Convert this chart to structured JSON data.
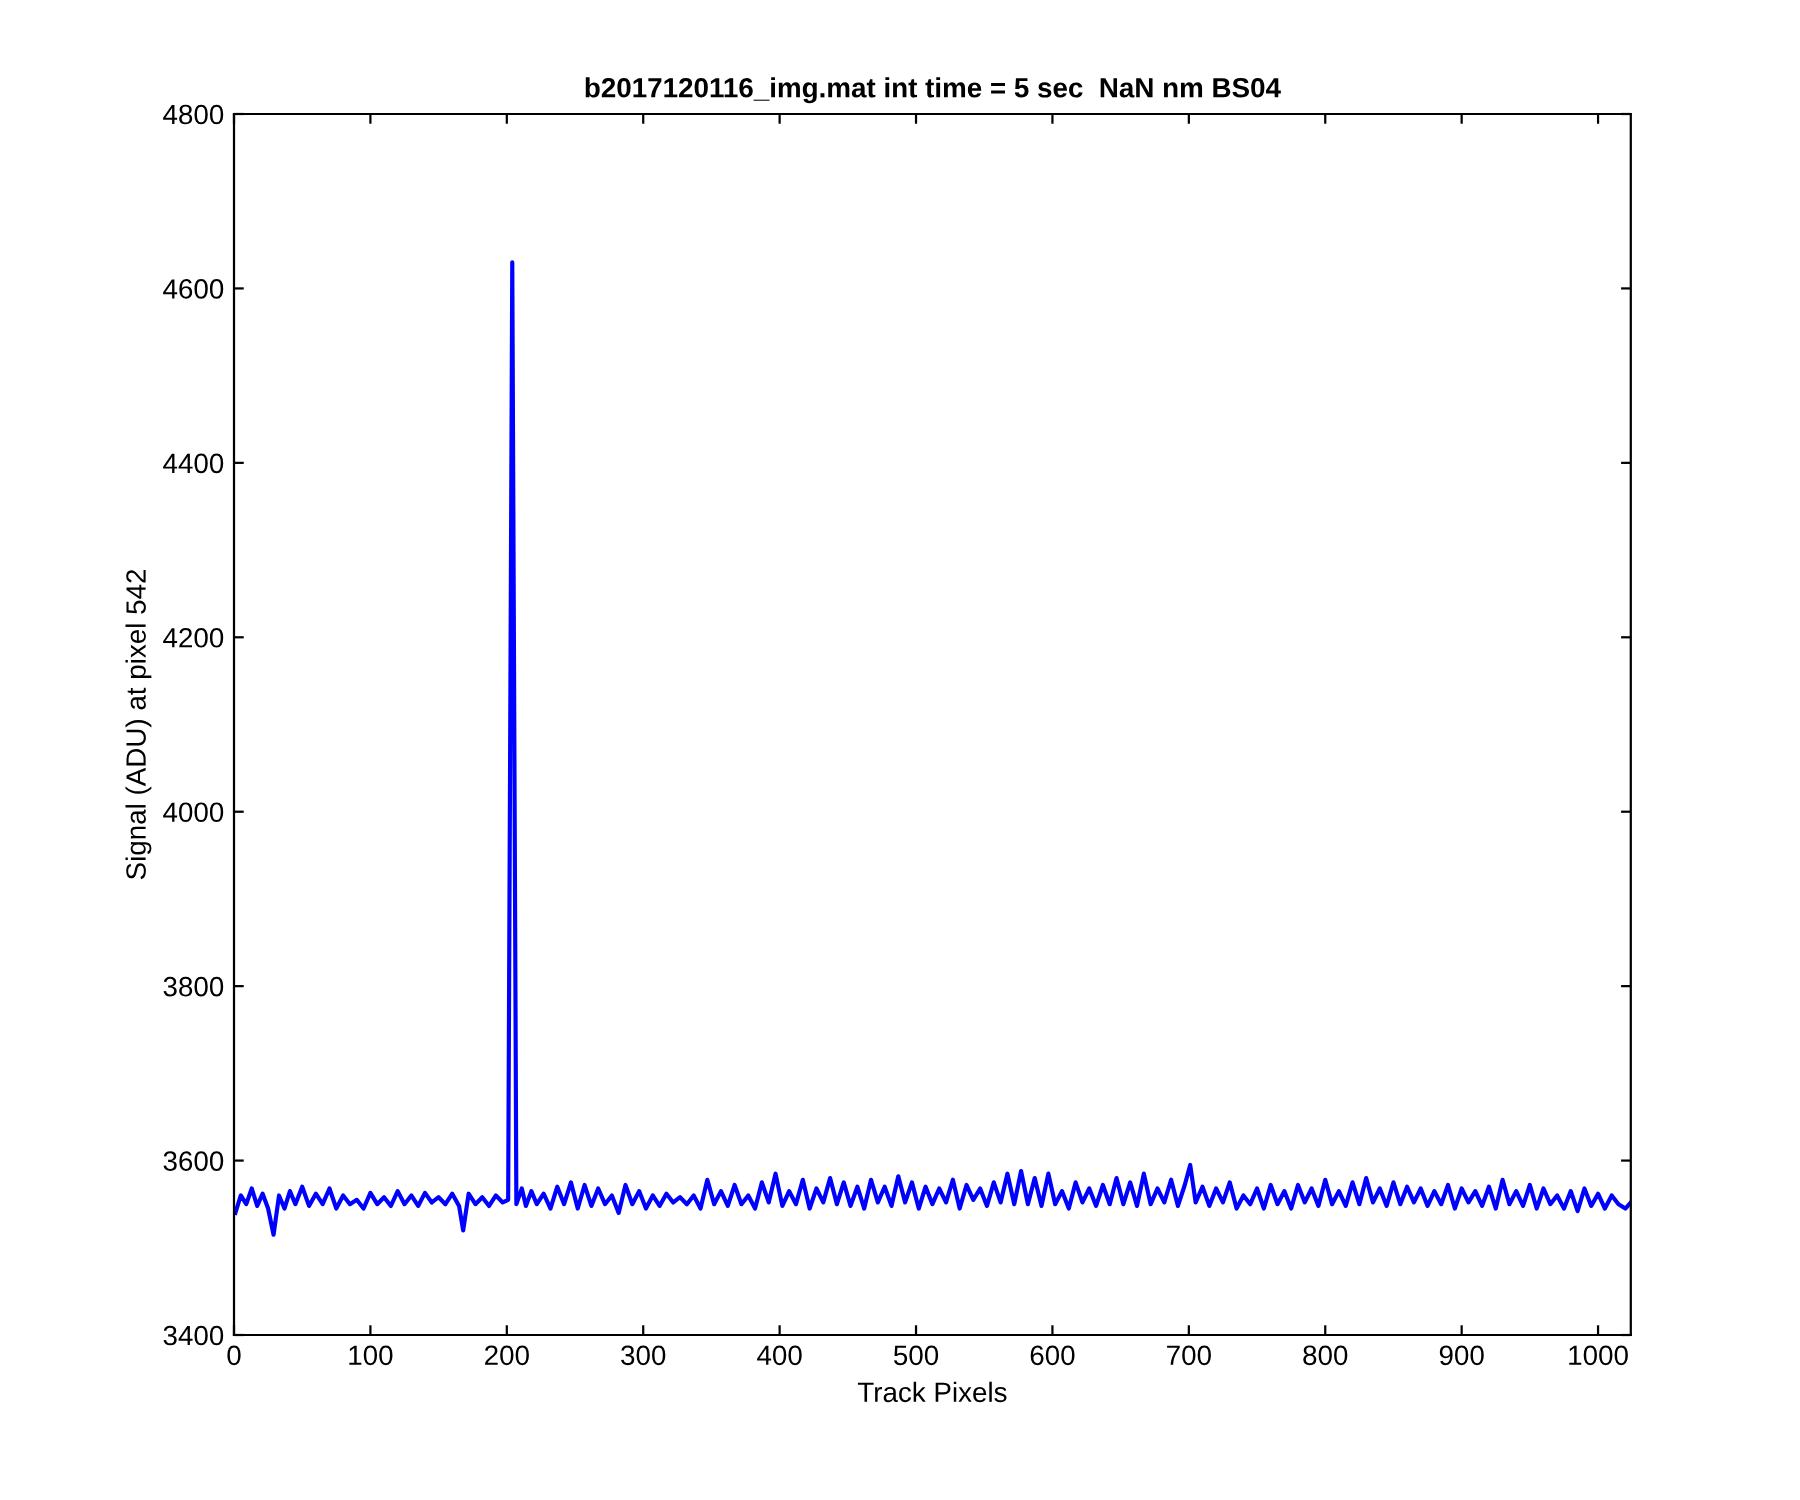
{
  "chart_data": {
    "type": "line",
    "title": "b2017120116_img.mat int time = 5 sec  NaN nm BS04",
    "xlabel": "Track Pixels",
    "ylabel": "Signal (ADU) at pixel 542",
    "series": [
      {
        "color": "#0000ff",
        "x": [
          1,
          5,
          9,
          13,
          17,
          21,
          25,
          29,
          33,
          37,
          41,
          45,
          50,
          55,
          60,
          65,
          70,
          75,
          80,
          85,
          90,
          95,
          100,
          105,
          110,
          115,
          120,
          125,
          130,
          135,
          140,
          145,
          150,
          155,
          160,
          165,
          168,
          172,
          177,
          182,
          187,
          192,
          197,
          201,
          204,
          207,
          211,
          214,
          218,
          222,
          227,
          232,
          237,
          242,
          247,
          252,
          257,
          262,
          267,
          272,
          277,
          282,
          287,
          292,
          297,
          302,
          307,
          312,
          317,
          322,
          327,
          332,
          337,
          342,
          347,
          352,
          357,
          362,
          367,
          372,
          377,
          382,
          387,
          392,
          397,
          402,
          407,
          412,
          417,
          422,
          427,
          432,
          437,
          442,
          447,
          452,
          457,
          462,
          467,
          472,
          477,
          482,
          487,
          492,
          497,
          502,
          507,
          512,
          517,
          522,
          527,
          532,
          537,
          542,
          547,
          552,
          557,
          562,
          567,
          572,
          577,
          582,
          587,
          592,
          597,
          602,
          607,
          612,
          617,
          622,
          627,
          632,
          637,
          642,
          647,
          652,
          657,
          662,
          667,
          672,
          677,
          682,
          687,
          692,
          697,
          701,
          705,
          710,
          715,
          720,
          725,
          730,
          735,
          740,
          745,
          750,
          755,
          760,
          765,
          770,
          775,
          780,
          785,
          790,
          795,
          800,
          805,
          810,
          815,
          820,
          825,
          830,
          835,
          840,
          845,
          850,
          855,
          860,
          865,
          870,
          875,
          880,
          885,
          890,
          895,
          900,
          905,
          910,
          915,
          920,
          925,
          930,
          935,
          940,
          945,
          950,
          955,
          960,
          965,
          970,
          975,
          980,
          985,
          990,
          995,
          1000,
          1005,
          1010,
          1015,
          1020,
          1024
        ],
        "values": [
          3540,
          3560,
          3550,
          3568,
          3548,
          3562,
          3545,
          3515,
          3560,
          3545,
          3565,
          3550,
          3570,
          3548,
          3562,
          3550,
          3568,
          3545,
          3560,
          3550,
          3555,
          3545,
          3563,
          3550,
          3558,
          3548,
          3565,
          3550,
          3560,
          3548,
          3563,
          3552,
          3558,
          3550,
          3562,
          3548,
          3520,
          3562,
          3550,
          3558,
          3548,
          3560,
          3552,
          3555,
          4630,
          3550,
          3568,
          3548,
          3565,
          3550,
          3562,
          3545,
          3570,
          3550,
          3575,
          3545,
          3572,
          3548,
          3568,
          3550,
          3560,
          3540,
          3572,
          3550,
          3565,
          3545,
          3560,
          3548,
          3562,
          3552,
          3558,
          3550,
          3560,
          3545,
          3578,
          3550,
          3565,
          3548,
          3572,
          3550,
          3560,
          3545,
          3575,
          3552,
          3585,
          3548,
          3565,
          3550,
          3578,
          3545,
          3568,
          3552,
          3580,
          3550,
          3575,
          3548,
          3570,
          3545,
          3578,
          3552,
          3570,
          3548,
          3582,
          3552,
          3575,
          3545,
          3570,
          3550,
          3568,
          3552,
          3578,
          3545,
          3572,
          3555,
          3568,
          3548,
          3575,
          3552,
          3585,
          3550,
          3588,
          3550,
          3580,
          3548,
          3585,
          3550,
          3565,
          3545,
          3575,
          3552,
          3568,
          3548,
          3572,
          3550,
          3580,
          3550,
          3575,
          3548,
          3585,
          3550,
          3568,
          3552,
          3578,
          3548,
          3572,
          3595,
          3552,
          3570,
          3548,
          3568,
          3552,
          3575,
          3545,
          3560,
          3550,
          3568,
          3545,
          3572,
          3550,
          3565,
          3545,
          3572,
          3552,
          3568,
          3548,
          3578,
          3550,
          3565,
          3548,
          3575,
          3550,
          3580,
          3552,
          3568,
          3548,
          3575,
          3550,
          3570,
          3552,
          3568,
          3548,
          3565,
          3550,
          3572,
          3545,
          3568,
          3552,
          3565,
          3548,
          3570,
          3545,
          3578,
          3550,
          3565,
          3548,
          3572,
          3545,
          3568,
          3550,
          3560,
          3545,
          3565,
          3542,
          3568,
          3548,
          3562,
          3545,
          3560,
          3550,
          3545,
          3552
        ]
      }
    ],
    "xlim": [
      0,
      1024
    ],
    "ylim": [
      3400,
      4800
    ],
    "xticks": [
      0,
      100,
      200,
      300,
      400,
      500,
      600,
      700,
      800,
      900,
      1000
    ],
    "yticks": [
      3400,
      3600,
      3800,
      4000,
      4200,
      4400,
      4600,
      4800
    ],
    "grid": false,
    "legend": false
  }
}
